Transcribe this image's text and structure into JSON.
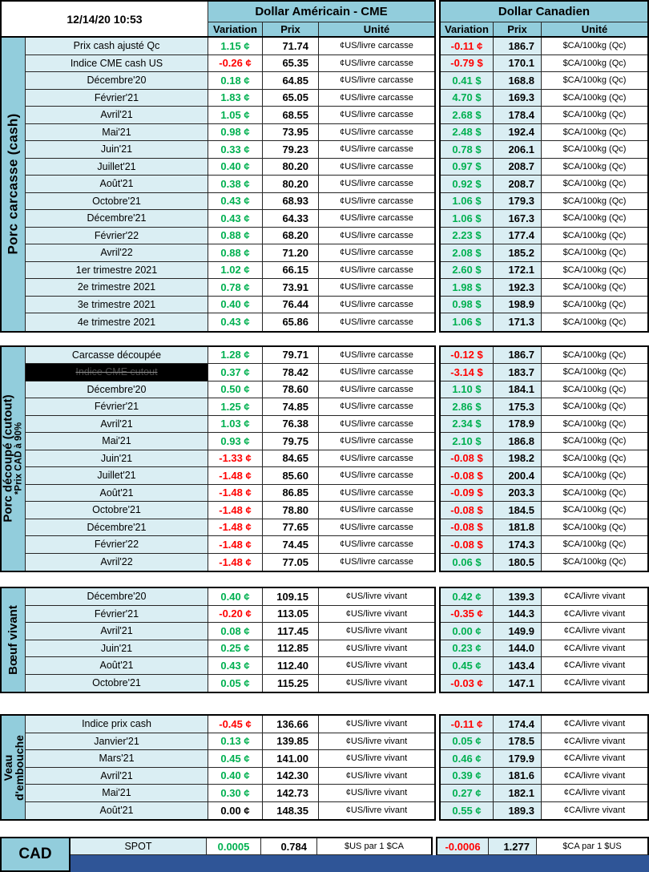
{
  "titlebar": {
    "timestamp": "12/14/20 10:53"
  },
  "currency_headers": {
    "us": "Dollar Américain - CME",
    "ca": "Dollar Canadien"
  },
  "columns": {
    "variation": "Variation",
    "prix": "Prix",
    "unite": "Unité"
  },
  "colors": {
    "header_fill": "#92CDDC",
    "row_label_fill": "#DAEEF3",
    "positive_green": "#00B050",
    "negative_red": "#FF0000",
    "footer_bar_blue": "#2F5597",
    "grid_line": "#262626",
    "highlight_black": "#000000"
  },
  "sections": [
    {
      "name": "porc-carcasse-cash",
      "sidebar": [
        {
          "text": "Porc carcasse (cash)"
        }
      ],
      "us_unit": "¢US/livre carcasse",
      "ca_unit": "$CA/100kg (Qc)",
      "rows": [
        {
          "l": "Prix cash ajusté Qc",
          "uv": "1.15 ¢",
          "uc": "g",
          "up": "71.74",
          "cv": "-0.11 ¢",
          "cc": "r",
          "cp": "186.7"
        },
        {
          "l": "Indice CME cash US",
          "uv": "-0.26 ¢",
          "uc": "r",
          "up": "65.35",
          "cv": "-0.79 $",
          "cc": "r",
          "cp": "170.1"
        },
        {
          "l": "Décembre'20",
          "uv": "0.18 ¢",
          "uc": "g",
          "up": "64.85",
          "cv": "0.41 $",
          "cc": "g",
          "cp": "168.8"
        },
        {
          "l": "Février'21",
          "uv": "1.83 ¢",
          "uc": "g",
          "up": "65.05",
          "cv": "4.70 $",
          "cc": "g",
          "cp": "169.3"
        },
        {
          "l": "Avril'21",
          "uv": "1.05 ¢",
          "uc": "g",
          "up": "68.55",
          "cv": "2.68 $",
          "cc": "g",
          "cp": "178.4"
        },
        {
          "l": "Mai'21",
          "uv": "0.98 ¢",
          "uc": "g",
          "up": "73.95",
          "cv": "2.48 $",
          "cc": "g",
          "cp": "192.4"
        },
        {
          "l": "Juin'21",
          "uv": "0.33 ¢",
          "uc": "g",
          "up": "79.23",
          "cv": "0.78 $",
          "cc": "g",
          "cp": "206.1"
        },
        {
          "l": "Juillet'21",
          "uv": "0.40 ¢",
          "uc": "g",
          "up": "80.20",
          "cv": "0.97 $",
          "cc": "g",
          "cp": "208.7"
        },
        {
          "l": "Août'21",
          "uv": "0.38 ¢",
          "uc": "g",
          "up": "80.20",
          "cv": "0.92 $",
          "cc": "g",
          "cp": "208.7"
        },
        {
          "l": "Octobre'21",
          "uv": "0.43 ¢",
          "uc": "g",
          "up": "68.93",
          "cv": "1.06 $",
          "cc": "g",
          "cp": "179.3"
        },
        {
          "l": "Décembre'21",
          "uv": "0.43 ¢",
          "uc": "g",
          "up": "64.33",
          "cv": "1.06 $",
          "cc": "g",
          "cp": "167.3"
        },
        {
          "l": "Février'22",
          "uv": "0.88 ¢",
          "uc": "g",
          "up": "68.20",
          "cv": "2.23 $",
          "cc": "g",
          "cp": "177.4"
        },
        {
          "l": "Avril'22",
          "uv": "0.88 ¢",
          "uc": "g",
          "up": "71.20",
          "cv": "2.08 $",
          "cc": "g",
          "cp": "185.2"
        },
        {
          "l": "1er trimestre 2021",
          "uv": "1.02 ¢",
          "uc": "g",
          "up": "66.15",
          "cv": "2.60 $",
          "cc": "g",
          "cp": "172.1"
        },
        {
          "l": "2e trimestre 2021",
          "uv": "0.78 ¢",
          "uc": "g",
          "up": "73.91",
          "cv": "1.98 $",
          "cc": "g",
          "cp": "192.3"
        },
        {
          "l": "3e trimestre 2021",
          "uv": "0.40 ¢",
          "uc": "g",
          "up": "76.44",
          "cv": "0.98 $",
          "cc": "g",
          "cp": "198.9"
        },
        {
          "l": "4e trimestre 2021",
          "uv": "0.43 ¢",
          "uc": "g",
          "up": "65.86",
          "cv": "1.06 $",
          "cc": "g",
          "cp": "171.3"
        }
      ]
    },
    {
      "name": "porc-decoupe-cutout",
      "sidebar": [
        {
          "text": "Porc découpé (cutout)"
        },
        {
          "text": "*Prix CAD à 90%",
          "small": true
        }
      ],
      "us_unit": "¢US/livre carcasse",
      "ca_unit": "$CA/100kg (Qc)",
      "rows": [
        {
          "l": "Carcasse découpée",
          "uv": "1.28 ¢",
          "uc": "g",
          "up": "79.71",
          "cv": "-0.12 $",
          "cc": "r",
          "cp": "186.7"
        },
        {
          "l": "Indice CME cutout",
          "hl": true,
          "uv": "0.37 ¢",
          "uc": "g",
          "up": "78.42",
          "cv": "-3.14 $",
          "cc": "r",
          "cp": "183.7"
        },
        {
          "l": "Décembre'20",
          "uv": "0.50 ¢",
          "uc": "g",
          "up": "78.60",
          "cv": "1.10 $",
          "cc": "g",
          "cp": "184.1"
        },
        {
          "l": "Février'21",
          "uv": "1.25 ¢",
          "uc": "g",
          "up": "74.85",
          "cv": "2.86 $",
          "cc": "g",
          "cp": "175.3"
        },
        {
          "l": "Avril'21",
          "uv": "1.03 ¢",
          "uc": "g",
          "up": "76.38",
          "cv": "2.34 $",
          "cc": "g",
          "cp": "178.9"
        },
        {
          "l": "Mai'21",
          "uv": "0.93 ¢",
          "uc": "g",
          "up": "79.75",
          "cv": "2.10 $",
          "cc": "g",
          "cp": "186.8"
        },
        {
          "l": "Juin'21",
          "uv": "-1.33 ¢",
          "uc": "r",
          "up": "84.65",
          "cv": "-0.08 $",
          "cc": "r",
          "cp": "198.2"
        },
        {
          "l": "Juillet'21",
          "uv": "-1.48 ¢",
          "uc": "r",
          "up": "85.60",
          "cv": "-0.08 $",
          "cc": "r",
          "cp": "200.4"
        },
        {
          "l": "Août'21",
          "uv": "-1.48 ¢",
          "uc": "r",
          "up": "86.85",
          "cv": "-0.09 $",
          "cc": "r",
          "cp": "203.3"
        },
        {
          "l": "Octobre'21",
          "uv": "-1.48 ¢",
          "uc": "r",
          "up": "78.80",
          "cv": "-0.08 $",
          "cc": "r",
          "cp": "184.5"
        },
        {
          "l": "Décembre'21",
          "uv": "-1.48 ¢",
          "uc": "r",
          "up": "77.65",
          "cv": "-0.08 $",
          "cc": "r",
          "cp": "181.8"
        },
        {
          "l": "Février'22",
          "uv": "-1.48 ¢",
          "uc": "r",
          "up": "74.45",
          "cv": "-0.08 $",
          "cc": "r",
          "cp": "174.3"
        },
        {
          "l": "Avril'22",
          "uv": "-1.48 ¢",
          "uc": "r",
          "up": "77.05",
          "cv": "0.06 $",
          "cc": "g",
          "cp": "180.5"
        }
      ]
    },
    {
      "name": "boeuf-vivant",
      "sidebar": [
        {
          "text": "Bœuf vivant"
        }
      ],
      "us_unit": "¢US/livre vivant",
      "ca_unit": "¢CA/livre vivant",
      "rows": [
        {
          "l": "Décembre'20",
          "uv": "0.40 ¢",
          "uc": "g",
          "up": "109.15",
          "cv": "0.42 ¢",
          "cc": "g",
          "cp": "139.3"
        },
        {
          "l": "Février'21",
          "uv": "-0.20 ¢",
          "uc": "r",
          "up": "113.05",
          "cv": "-0.35 ¢",
          "cc": "r",
          "cp": "144.3"
        },
        {
          "l": "Avril'21",
          "uv": "0.08 ¢",
          "uc": "g",
          "up": "117.45",
          "cv": "0.00 ¢",
          "cc": "g",
          "cp": "149.9"
        },
        {
          "l": "Juin'21",
          "uv": "0.25 ¢",
          "uc": "g",
          "up": "112.85",
          "cv": "0.23 ¢",
          "cc": "g",
          "cp": "144.0"
        },
        {
          "l": "Août'21",
          "uv": "0.43 ¢",
          "uc": "g",
          "up": "112.40",
          "cv": "0.45 ¢",
          "cc": "g",
          "cp": "143.4"
        },
        {
          "l": "Octobre'21",
          "uv": "0.05 ¢",
          "uc": "g",
          "up": "115.25",
          "cv": "-0.03 ¢",
          "cc": "r",
          "cp": "147.1"
        }
      ]
    },
    {
      "name": "veau-embouche",
      "sidebar": [
        {
          "text": "Veau"
        },
        {
          "text": "d'embouche"
        }
      ],
      "us_unit": "¢US/livre vivant",
      "ca_unit": "¢CA/livre vivant",
      "rows": [
        {
          "l": "Indice prix cash",
          "uv": "-0.45 ¢",
          "uc": "r",
          "up": "136.66",
          "cv": "-0.11 ¢",
          "cc": "r",
          "cp": "174.4"
        },
        {
          "l": "Janvier'21",
          "uv": "0.13 ¢",
          "uc": "g",
          "up": "139.85",
          "cv": "0.05 ¢",
          "cc": "g",
          "cp": "178.5"
        },
        {
          "l": "Mars'21",
          "uv": "0.45 ¢",
          "uc": "g",
          "up": "141.00",
          "cv": "0.46 ¢",
          "cc": "g",
          "cp": "179.9"
        },
        {
          "l": "Avril'21",
          "uv": "0.40 ¢",
          "uc": "g",
          "up": "142.30",
          "cv": "0.39 ¢",
          "cc": "g",
          "cp": "181.6"
        },
        {
          "l": "Mai'21",
          "uv": "0.30 ¢",
          "uc": "g",
          "up": "142.73",
          "cv": "0.27 ¢",
          "cc": "g",
          "cp": "182.1"
        },
        {
          "l": "Août'21",
          "uv": "0.00 ¢",
          "uc": "k",
          "up": "148.35",
          "cv": "0.55 ¢",
          "cc": "g",
          "cp": "189.3"
        }
      ]
    }
  ],
  "footer": {
    "sidebar": "CAD",
    "label": "SPOT",
    "us": {
      "v": "0.0005",
      "c": "g",
      "p": "0.784",
      "u": "$US par 1 $CA"
    },
    "ca": {
      "v": "-0.0006",
      "c": "r",
      "p": "1.277",
      "u": "$CA par 1 $US"
    }
  }
}
